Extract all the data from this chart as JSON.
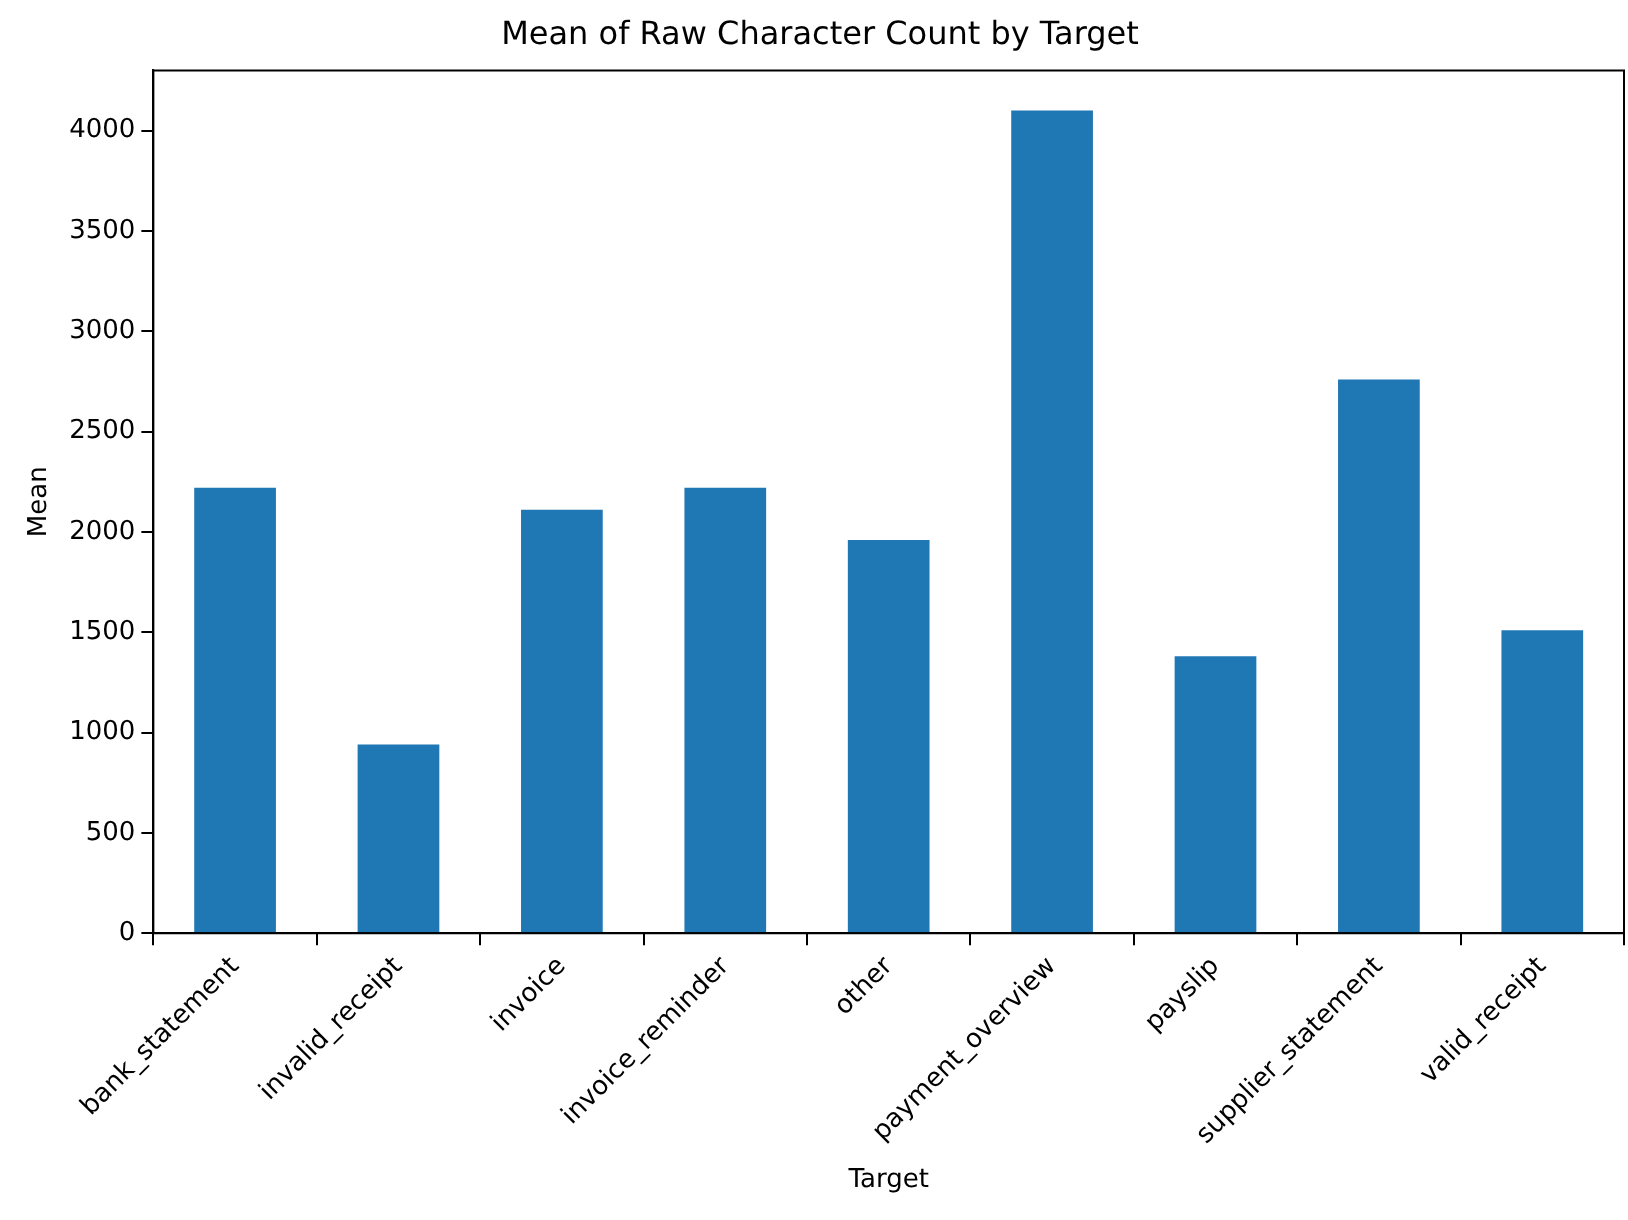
{
  "chart_data": {
    "type": "bar",
    "title": "Mean of Raw Character Count by Target",
    "xlabel": "Target",
    "ylabel": "Mean",
    "categories": [
      "bank_statement",
      "invalid_receipt",
      "invoice",
      "invoice_reminder",
      "other",
      "payment_overview",
      "payslip",
      "supplier_statement",
      "valid_receipt"
    ],
    "values": [
      2220,
      940,
      2110,
      2220,
      1960,
      4100,
      1380,
      2760,
      1510
    ],
    "color": "#1f77b4",
    "ylim": [
      0,
      4300
    ],
    "yticks": [
      0,
      500,
      1000,
      1500,
      2000,
      2500,
      3000,
      3500,
      4000
    ],
    "grid": false,
    "legend": false
  }
}
